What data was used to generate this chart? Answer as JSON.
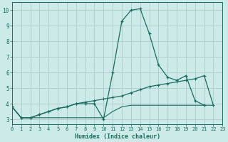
{
  "x": [
    0,
    1,
    2,
    3,
    4,
    5,
    6,
    7,
    8,
    9,
    10,
    11,
    12,
    13,
    14,
    15,
    16,
    17,
    18,
    19,
    20,
    21,
    22,
    23
  ],
  "line_peak": [
    3.8,
    3.1,
    3.1,
    3.3,
    3.5,
    3.7,
    3.8,
    4.0,
    4.0,
    4.0,
    3.0,
    6.0,
    9.3,
    10.0,
    10.1,
    8.5,
    6.5,
    5.7,
    5.5,
    5.8,
    4.2,
    3.9,
    null,
    null
  ],
  "line_diag": [
    3.8,
    3.1,
    3.1,
    3.3,
    3.5,
    3.7,
    3.8,
    4.0,
    4.1,
    4.2,
    4.3,
    4.4,
    4.5,
    4.7,
    4.9,
    5.1,
    5.2,
    5.3,
    5.4,
    5.5,
    5.6,
    5.8,
    3.9,
    null
  ],
  "line_flat": [
    3.8,
    3.1,
    3.1,
    3.1,
    3.1,
    3.1,
    3.1,
    3.1,
    3.1,
    3.1,
    3.1,
    3.5,
    3.8,
    3.9,
    3.9,
    3.9,
    3.9,
    3.9,
    3.9,
    3.9,
    3.9,
    3.9,
    3.9,
    null
  ],
  "background_color": "#cceae7",
  "grid_color": "#aaccca",
  "line_color": "#1a6b5e",
  "ylabel_values": [
    3,
    4,
    5,
    6,
    7,
    8,
    9,
    10
  ],
  "xlabel": "Humidex (Indice chaleur)",
  "xlim": [
    0,
    23
  ],
  "ylim": [
    2.7,
    10.5
  ]
}
